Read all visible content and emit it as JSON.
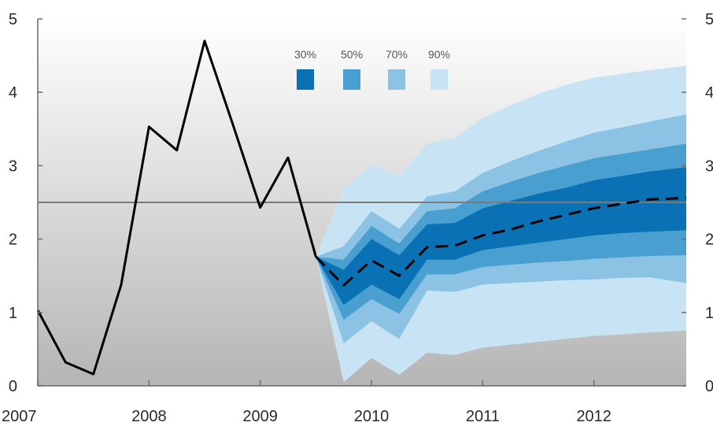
{
  "chart_data": {
    "type": "area",
    "ylim": [
      0,
      5
    ],
    "xlim": [
      2007,
      2012.83
    ],
    "x_tick_labels": [
      "2007",
      "2008",
      "2009",
      "2010",
      "2011",
      "2012"
    ],
    "y_tick_labels_left": [
      "0",
      "1",
      "2",
      "3",
      "4",
      "5"
    ],
    "y_tick_labels_right": [
      "0",
      "1",
      "2",
      "3",
      "4",
      "5"
    ],
    "reference_line": 2.5,
    "grid": false,
    "legend_position": "top-center",
    "legend": [
      {
        "label": "30%",
        "color": "#0a72b4"
      },
      {
        "label": "50%",
        "color": "#4a9fd1"
      },
      {
        "label": "70%",
        "color": "#8cc3e4"
      },
      {
        "label": "90%",
        "color": "#c8e3f3"
      }
    ],
    "history": {
      "x": [
        2007.0,
        2007.25,
        2007.5,
        2007.75,
        2008.0,
        2008.25,
        2008.5,
        2008.75,
        2009.0,
        2009.25,
        2009.5
      ],
      "y": [
        1.03,
        0.32,
        0.16,
        1.38,
        3.53,
        3.21,
        4.7,
        3.58,
        2.43,
        3.11,
        1.76
      ]
    },
    "projection": {
      "x": [
        2009.5,
        2009.75,
        2010.0,
        2010.25,
        2010.5,
        2010.75,
        2011.0,
        2011.25,
        2011.5,
        2011.75,
        2012.0,
        2012.25,
        2012.5,
        2012.83
      ],
      "median": [
        1.76,
        1.37,
        1.71,
        1.5,
        1.89,
        1.91,
        2.05,
        2.13,
        2.24,
        2.33,
        2.42,
        2.48,
        2.54,
        2.56
      ],
      "band_30_lower": [
        1.76,
        1.1,
        1.38,
        1.18,
        1.72,
        1.72,
        1.85,
        1.9,
        1.95,
        2.0,
        2.05,
        2.08,
        2.1,
        2.12
      ],
      "band_30_upper": [
        1.76,
        1.58,
        2.0,
        1.78,
        2.2,
        2.22,
        2.42,
        2.52,
        2.62,
        2.7,
        2.8,
        2.86,
        2.92,
        2.98
      ],
      "band_50_lower": [
        1.76,
        0.9,
        1.18,
        0.98,
        1.52,
        1.52,
        1.62,
        1.65,
        1.68,
        1.7,
        1.73,
        1.75,
        1.77,
        1.78
      ],
      "band_50_upper": [
        1.76,
        1.72,
        2.18,
        1.94,
        2.38,
        2.42,
        2.65,
        2.78,
        2.9,
        3.0,
        3.1,
        3.16,
        3.22,
        3.3
      ],
      "band_70_lower": [
        1.76,
        0.58,
        0.88,
        0.64,
        1.3,
        1.28,
        1.38,
        1.4,
        1.42,
        1.44,
        1.45,
        1.47,
        1.48,
        1.4
      ],
      "band_70_upper": [
        1.76,
        1.9,
        2.38,
        2.14,
        2.58,
        2.65,
        2.9,
        3.06,
        3.2,
        3.33,
        3.45,
        3.52,
        3.6,
        3.7
      ],
      "band_90_lower": [
        1.76,
        0.05,
        0.38,
        0.15,
        0.45,
        0.42,
        0.52,
        0.56,
        0.6,
        0.64,
        0.68,
        0.7,
        0.73,
        0.75
      ],
      "band_90_upper": [
        1.76,
        2.68,
        3.02,
        2.86,
        3.3,
        3.38,
        3.65,
        3.82,
        3.98,
        4.1,
        4.2,
        4.25,
        4.3,
        4.36
      ]
    }
  }
}
